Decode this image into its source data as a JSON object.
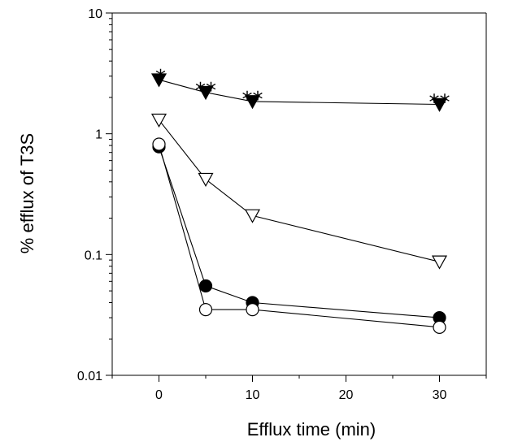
{
  "chart_data": {
    "type": "scatter",
    "title": "",
    "xlabel": "Efflux time (min)",
    "ylabel": "% efflux of T3S",
    "xlim": [
      -5,
      35
    ],
    "ylim": [
      0.01,
      10
    ],
    "yscale": "log",
    "x_ticks": [
      0,
      10,
      20,
      30
    ],
    "x_tick_labels": [
      "0",
      "10",
      "20",
      "30"
    ],
    "y_ticks": [
      0.01,
      0.1,
      1,
      10
    ],
    "y_tick_labels": [
      "0.01",
      "0.1",
      "1",
      "10"
    ],
    "grid": false,
    "series": [
      {
        "marker": "triangle-down-filled",
        "x": [
          0,
          5,
          10,
          30
        ],
        "y": [
          2.8,
          2.2,
          1.85,
          1.75
        ]
      },
      {
        "marker": "triangle-down-open",
        "x": [
          0,
          5,
          10,
          30
        ],
        "y": [
          1.3,
          0.42,
          0.21,
          0.087
        ]
      },
      {
        "marker": "circle-filled",
        "x": [
          0,
          5,
          10,
          30
        ],
        "y": [
          0.78,
          0.055,
          0.04,
          0.03
        ]
      },
      {
        "marker": "circle-open",
        "x": [
          0,
          5,
          10,
          30
        ],
        "y": [
          0.82,
          0.035,
          0.035,
          0.025
        ]
      }
    ],
    "annotations": [
      {
        "text": "*",
        "x": 0,
        "y": 2.8
      },
      {
        "text": "**",
        "x": 5,
        "y": 2.2
      },
      {
        "text": "**",
        "x": 10,
        "y": 1.85
      },
      {
        "text": "**",
        "x": 30,
        "y": 1.75
      }
    ]
  }
}
